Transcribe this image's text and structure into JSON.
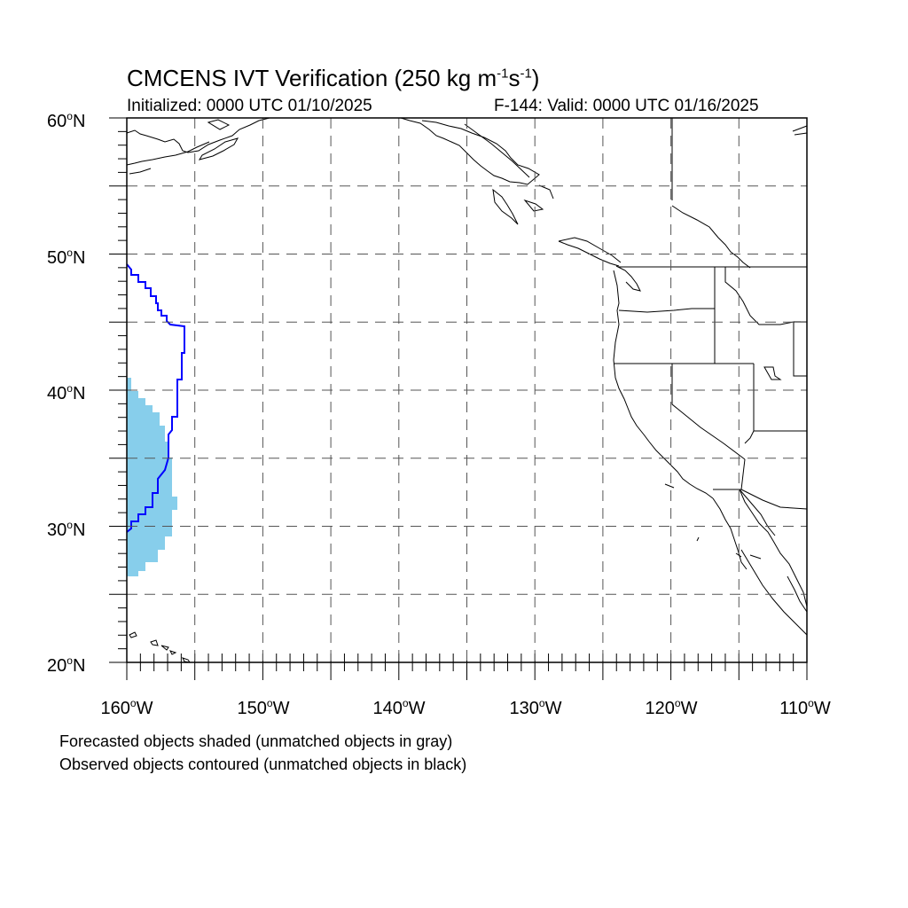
{
  "title": {
    "main": "CMCENS IVT Verification (250 kg m",
    "exp1": "-1",
    "mid": "s",
    "exp2": "-1",
    "end": ")"
  },
  "subtitle_left": "Initialized: 0000 UTC 01/10/2025",
  "subtitle_right": "F-144: Valid: 0000 UTC 01/16/2025",
  "lat_labels": [
    "60",
    "50",
    "40",
    "30",
    "20"
  ],
  "lat_suffix": "N",
  "lon_labels": [
    "160",
    "150",
    "140",
    "130",
    "120",
    "110"
  ],
  "lon_suffix": "W",
  "degree_symbol": "o",
  "notes": [
    "Forecasted objects shaded (unmatched objects in gray)",
    "Observed objects contoured (unmatched objects in black)"
  ],
  "colors": {
    "forecast_fill": "#87ceeb",
    "observed_contour": "#0000ff",
    "coastline": "#000000",
    "grid": "#555555"
  },
  "map_extent": {
    "lon_min": -160,
    "lon_max": -110,
    "lat_min": 20,
    "lat_max": 60
  },
  "grid_spacing_deg": 5,
  "forecast_object_lat": [
    26.3,
    41.0
  ],
  "observed_contour_lat": [
    29.7,
    49.2
  ]
}
